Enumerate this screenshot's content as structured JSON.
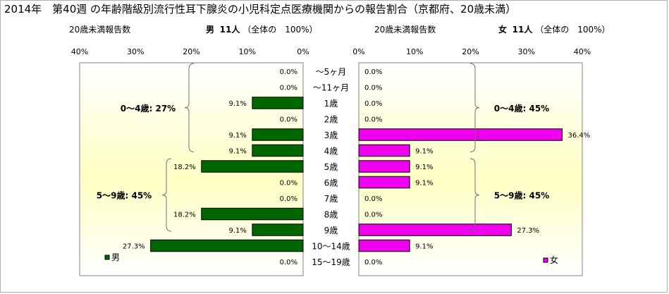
{
  "title": "2014年　第40週 の年齢階級別流行性耳下腺炎の小児科定点医療機関からの報告割合（京都府、20歳未満）",
  "left_panel": {
    "header": "20歳未満報告数",
    "sex_label": "男",
    "count_label": "11人",
    "total_note": "（全体の　100%）",
    "legend": "男",
    "color": "#006600",
    "groups": [
      {
        "label": "0～4歳: 27%",
        "from_index": 0,
        "to_index": 5
      },
      {
        "label": "5～9歳: 45%",
        "from_index": 6,
        "to_index": 10
      }
    ]
  },
  "right_panel": {
    "header": "20歳未満報告数",
    "sex_label": "女",
    "count_label": "11人",
    "total_note": "（全体の　100%）",
    "legend": "女",
    "color": "#ee00ee",
    "groups": [
      {
        "label": "0～4歳: 45%",
        "from_index": 0,
        "to_index": 5
      },
      {
        "label": "5～9歳: 45%",
        "from_index": 6,
        "to_index": 10
      }
    ]
  },
  "chart_data": {
    "type": "bar",
    "orientation": "horizontal-butterfly",
    "categories": [
      "～5ヶ月",
      "～11ヶ月",
      "1歳",
      "2歳",
      "3歳",
      "4歳",
      "5歳",
      "6歳",
      "7歳",
      "8歳",
      "9歳",
      "10～14歳",
      "15～19歳"
    ],
    "series": [
      {
        "name": "男",
        "values": [
          0.0,
          0.0,
          9.1,
          0.0,
          9.1,
          9.1,
          18.2,
          0.0,
          0.0,
          18.2,
          9.1,
          27.3,
          0.0
        ],
        "labels": [
          "0.0%",
          "0.0%",
          "9.1%",
          "0.0%",
          "9.1%",
          "9.1%",
          "18.2%",
          "0.0%",
          "0.0%",
          "18.2%",
          "9.1%",
          "27.3%",
          "0.0%"
        ]
      },
      {
        "name": "女",
        "values": [
          0.0,
          0.0,
          0.0,
          0.0,
          36.4,
          9.1,
          9.1,
          9.1,
          0.0,
          0.0,
          27.3,
          9.1,
          0.0
        ],
        "labels": [
          "0.0%",
          "0.0%",
          "0.0%",
          "0.0%",
          "36.4%",
          "9.1%",
          "9.1%",
          "9.1%",
          "0.0%",
          "0.0%",
          "27.3%",
          "9.1%",
          "0.0%"
        ]
      }
    ],
    "xlim": [
      0,
      40
    ],
    "ticks": [
      "0%",
      "10%",
      "20%",
      "30%",
      "40%"
    ],
    "grid": false,
    "legend_position": "bottom"
  }
}
